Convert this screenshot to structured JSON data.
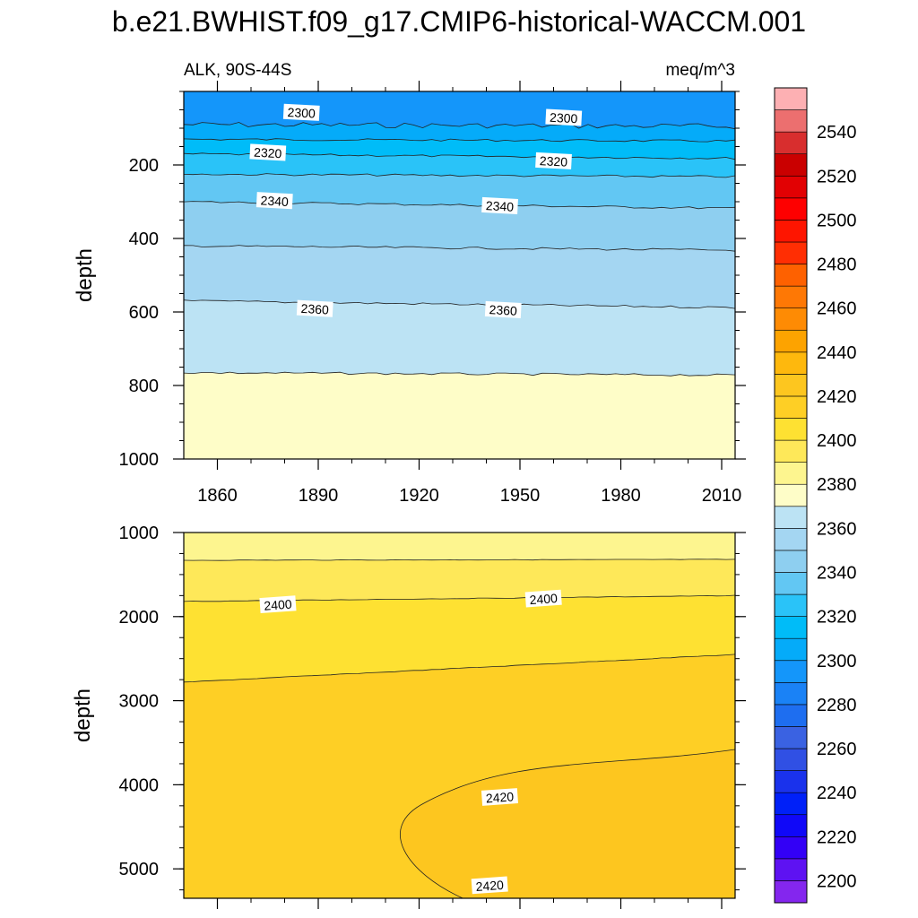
{
  "title": "b.e21.BWHIST.f09_g17.CMIP6-historical-WACCM.001",
  "colors": {
    "levels": [
      2200,
      2210,
      2220,
      2230,
      2240,
      2250,
      2260,
      2270,
      2280,
      2290,
      2300,
      2310,
      2320,
      2330,
      2340,
      2350,
      2360,
      2370,
      2380,
      2390,
      2400,
      2410,
      2420,
      2430,
      2440,
      2450,
      2460,
      2470,
      2480,
      2490,
      2500,
      2510,
      2520,
      2530,
      2540,
      2550
    ],
    "fills": [
      "#8426ee",
      "#5e12f2",
      "#3300f6",
      "#1008f8",
      "#0020f8",
      "#1a32ec",
      "#3050e4",
      "#3a62e2",
      "#1e6ef0",
      "#1a82f6",
      "#1496fa",
      "#05abf9",
      "#00bcf8",
      "#2ac3f8",
      "#62c7f3",
      "#8ecff0",
      "#a4d6f2",
      "#bce3f4",
      "#fefdc8",
      "#fdf58f",
      "#fee859",
      "#fee132",
      "#fecf25",
      "#fdc61f",
      "#feb80d",
      "#fda300",
      "#fe8b04",
      "#fe7805",
      "#fe6100",
      "#ff2e03",
      "#fe1500",
      "#fe0000",
      "#e20103",
      "#ca0000",
      "#d82e2e",
      "#ec6f6f",
      "#fdb0b3"
    ],
    "line": "#222222"
  },
  "chart_data": [
    {
      "type": "contour",
      "panel": "upper",
      "left_label": "ALK, 90S-44S",
      "right_label": "meq/m^3",
      "ylabel": "depth",
      "xlim": [
        1850,
        2014
      ],
      "ylim": [
        1000,
        0
      ],
      "xticks": [
        1860,
        1890,
        1920,
        1950,
        1980,
        2010
      ],
      "yticks": [
        200,
        400,
        600,
        800,
        1000
      ],
      "contours": [
        {
          "value": 2300,
          "depth_start": 90,
          "depth_end": 95
        },
        {
          "value": 2310,
          "depth_start": 130,
          "depth_end": 135
        },
        {
          "value": 2320,
          "depth_start": 170,
          "depth_end": 182
        },
        {
          "value": 2330,
          "depth_start": 225,
          "depth_end": 232
        },
        {
          "value": 2340,
          "depth_start": 300,
          "depth_end": 318
        },
        {
          "value": 2350,
          "depth_start": 420,
          "depth_end": 432
        },
        {
          "value": 2360,
          "depth_start": 570,
          "depth_end": 588
        },
        {
          "value": 2370,
          "depth_start": 765,
          "depth_end": 772
        }
      ],
      "labels": [
        {
          "text": "2300",
          "x": 1885,
          "depth": 58
        },
        {
          "text": "2300",
          "x": 1963,
          "depth": 72
        },
        {
          "text": "2320",
          "x": 1875,
          "depth": 167
        },
        {
          "text": "2320",
          "x": 1960,
          "depth": 190
        },
        {
          "text": "2340",
          "x": 1877,
          "depth": 298
        },
        {
          "text": "2340",
          "x": 1944,
          "depth": 312
        },
        {
          "text": "2360",
          "x": 1889,
          "depth": 592
        },
        {
          "text": "2360",
          "x": 1945,
          "depth": 595
        }
      ]
    },
    {
      "type": "contour",
      "panel": "lower",
      "ylabel": "depth",
      "xlim": [
        1850,
        2014
      ],
      "ylim": [
        5350,
        1000
      ],
      "yticks": [
        1000,
        2000,
        3000,
        4000,
        5000
      ],
      "contours": [
        {
          "value": 2390,
          "depth_start": 1330,
          "depth_end": 1320
        },
        {
          "value": 2400,
          "depth_start": 1820,
          "depth_end": 1750
        },
        {
          "value": 2410,
          "depth_start": 2780,
          "depth_end": 2450
        },
        {
          "value": 2420,
          "shape": "tongue",
          "tip_x": 1915,
          "tip_depth": 4620,
          "upper_end_depth": 3580,
          "bottom_x": 1933
        }
      ],
      "labels": [
        {
          "text": "2400",
          "x": 1878,
          "depth": 1860
        },
        {
          "text": "2400",
          "x": 1957,
          "depth": 1790
        },
        {
          "text": "2420",
          "x": 1944,
          "depth": 4150
        },
        {
          "text": "2420",
          "x": 1941,
          "depth": 5200
        }
      ]
    }
  ],
  "colorbar": {
    "labels": [
      "2200",
      "2220",
      "2240",
      "2260",
      "2280",
      "2300",
      "2320",
      "2340",
      "2360",
      "2380",
      "2400",
      "2420",
      "2440",
      "2460",
      "2480",
      "2500",
      "2520",
      "2540"
    ]
  }
}
